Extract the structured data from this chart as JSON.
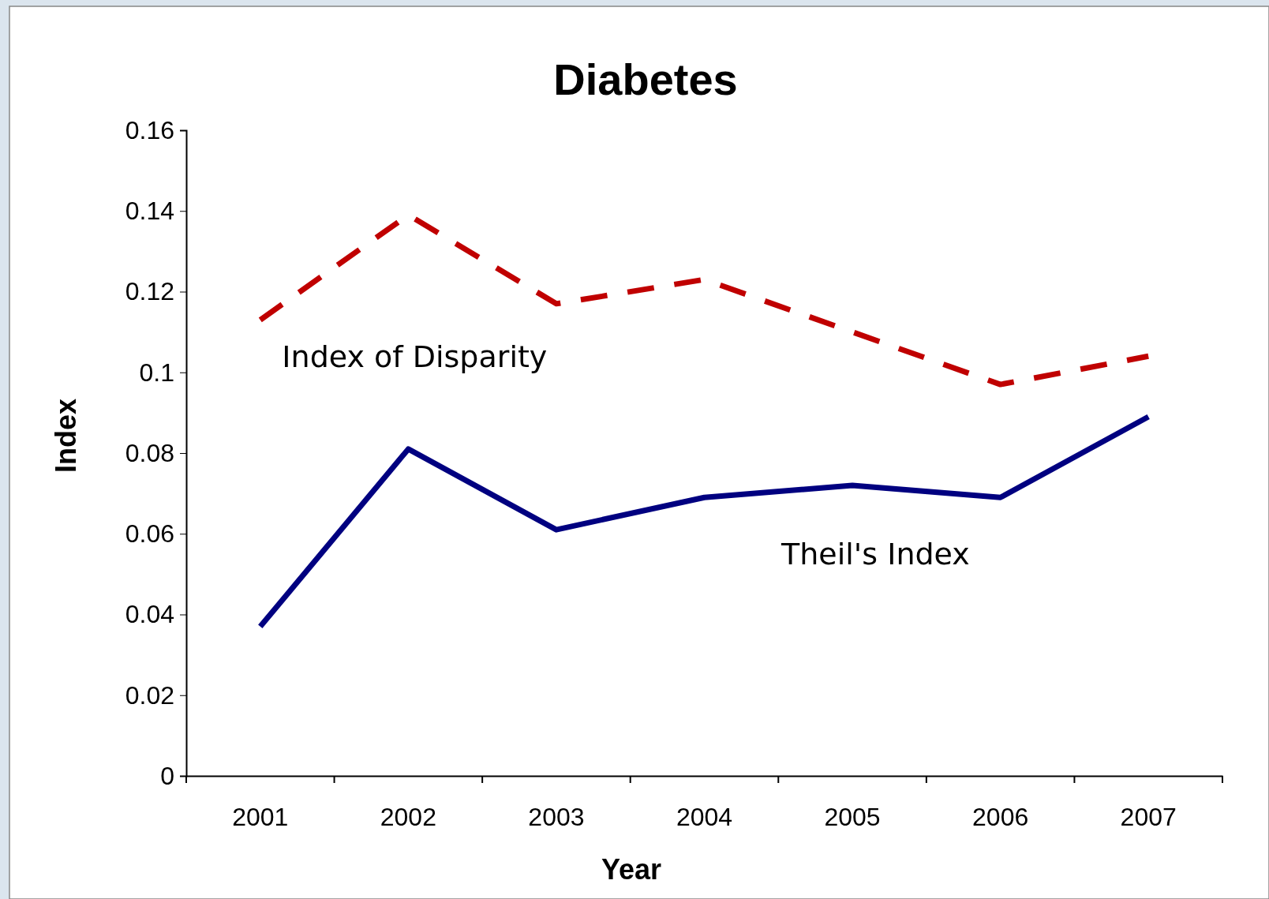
{
  "chart_data": {
    "type": "line",
    "title": "Diabetes",
    "xlabel": "Year",
    "ylabel": "Index",
    "categories": [
      "2001",
      "2002",
      "2003",
      "2004",
      "2005",
      "2006",
      "2007"
    ],
    "series": [
      {
        "name": "Index of Disparity",
        "color": "#c00000",
        "line_style": "dashed",
        "values": [
          0.113,
          0.139,
          0.117,
          0.123,
          0.11,
          0.097,
          0.104
        ]
      },
      {
        "name": "Theil's Index",
        "color": "#000080",
        "line_style": "solid",
        "values": [
          0.037,
          0.081,
          0.061,
          0.069,
          0.072,
          0.069,
          0.089
        ]
      }
    ],
    "ylim": [
      0,
      0.16
    ],
    "yticks": [
      0,
      0.02,
      0.04,
      0.06,
      0.08,
      0.1,
      0.12,
      0.14,
      0.16
    ],
    "legend": false,
    "grid": false,
    "marker": "none"
  }
}
